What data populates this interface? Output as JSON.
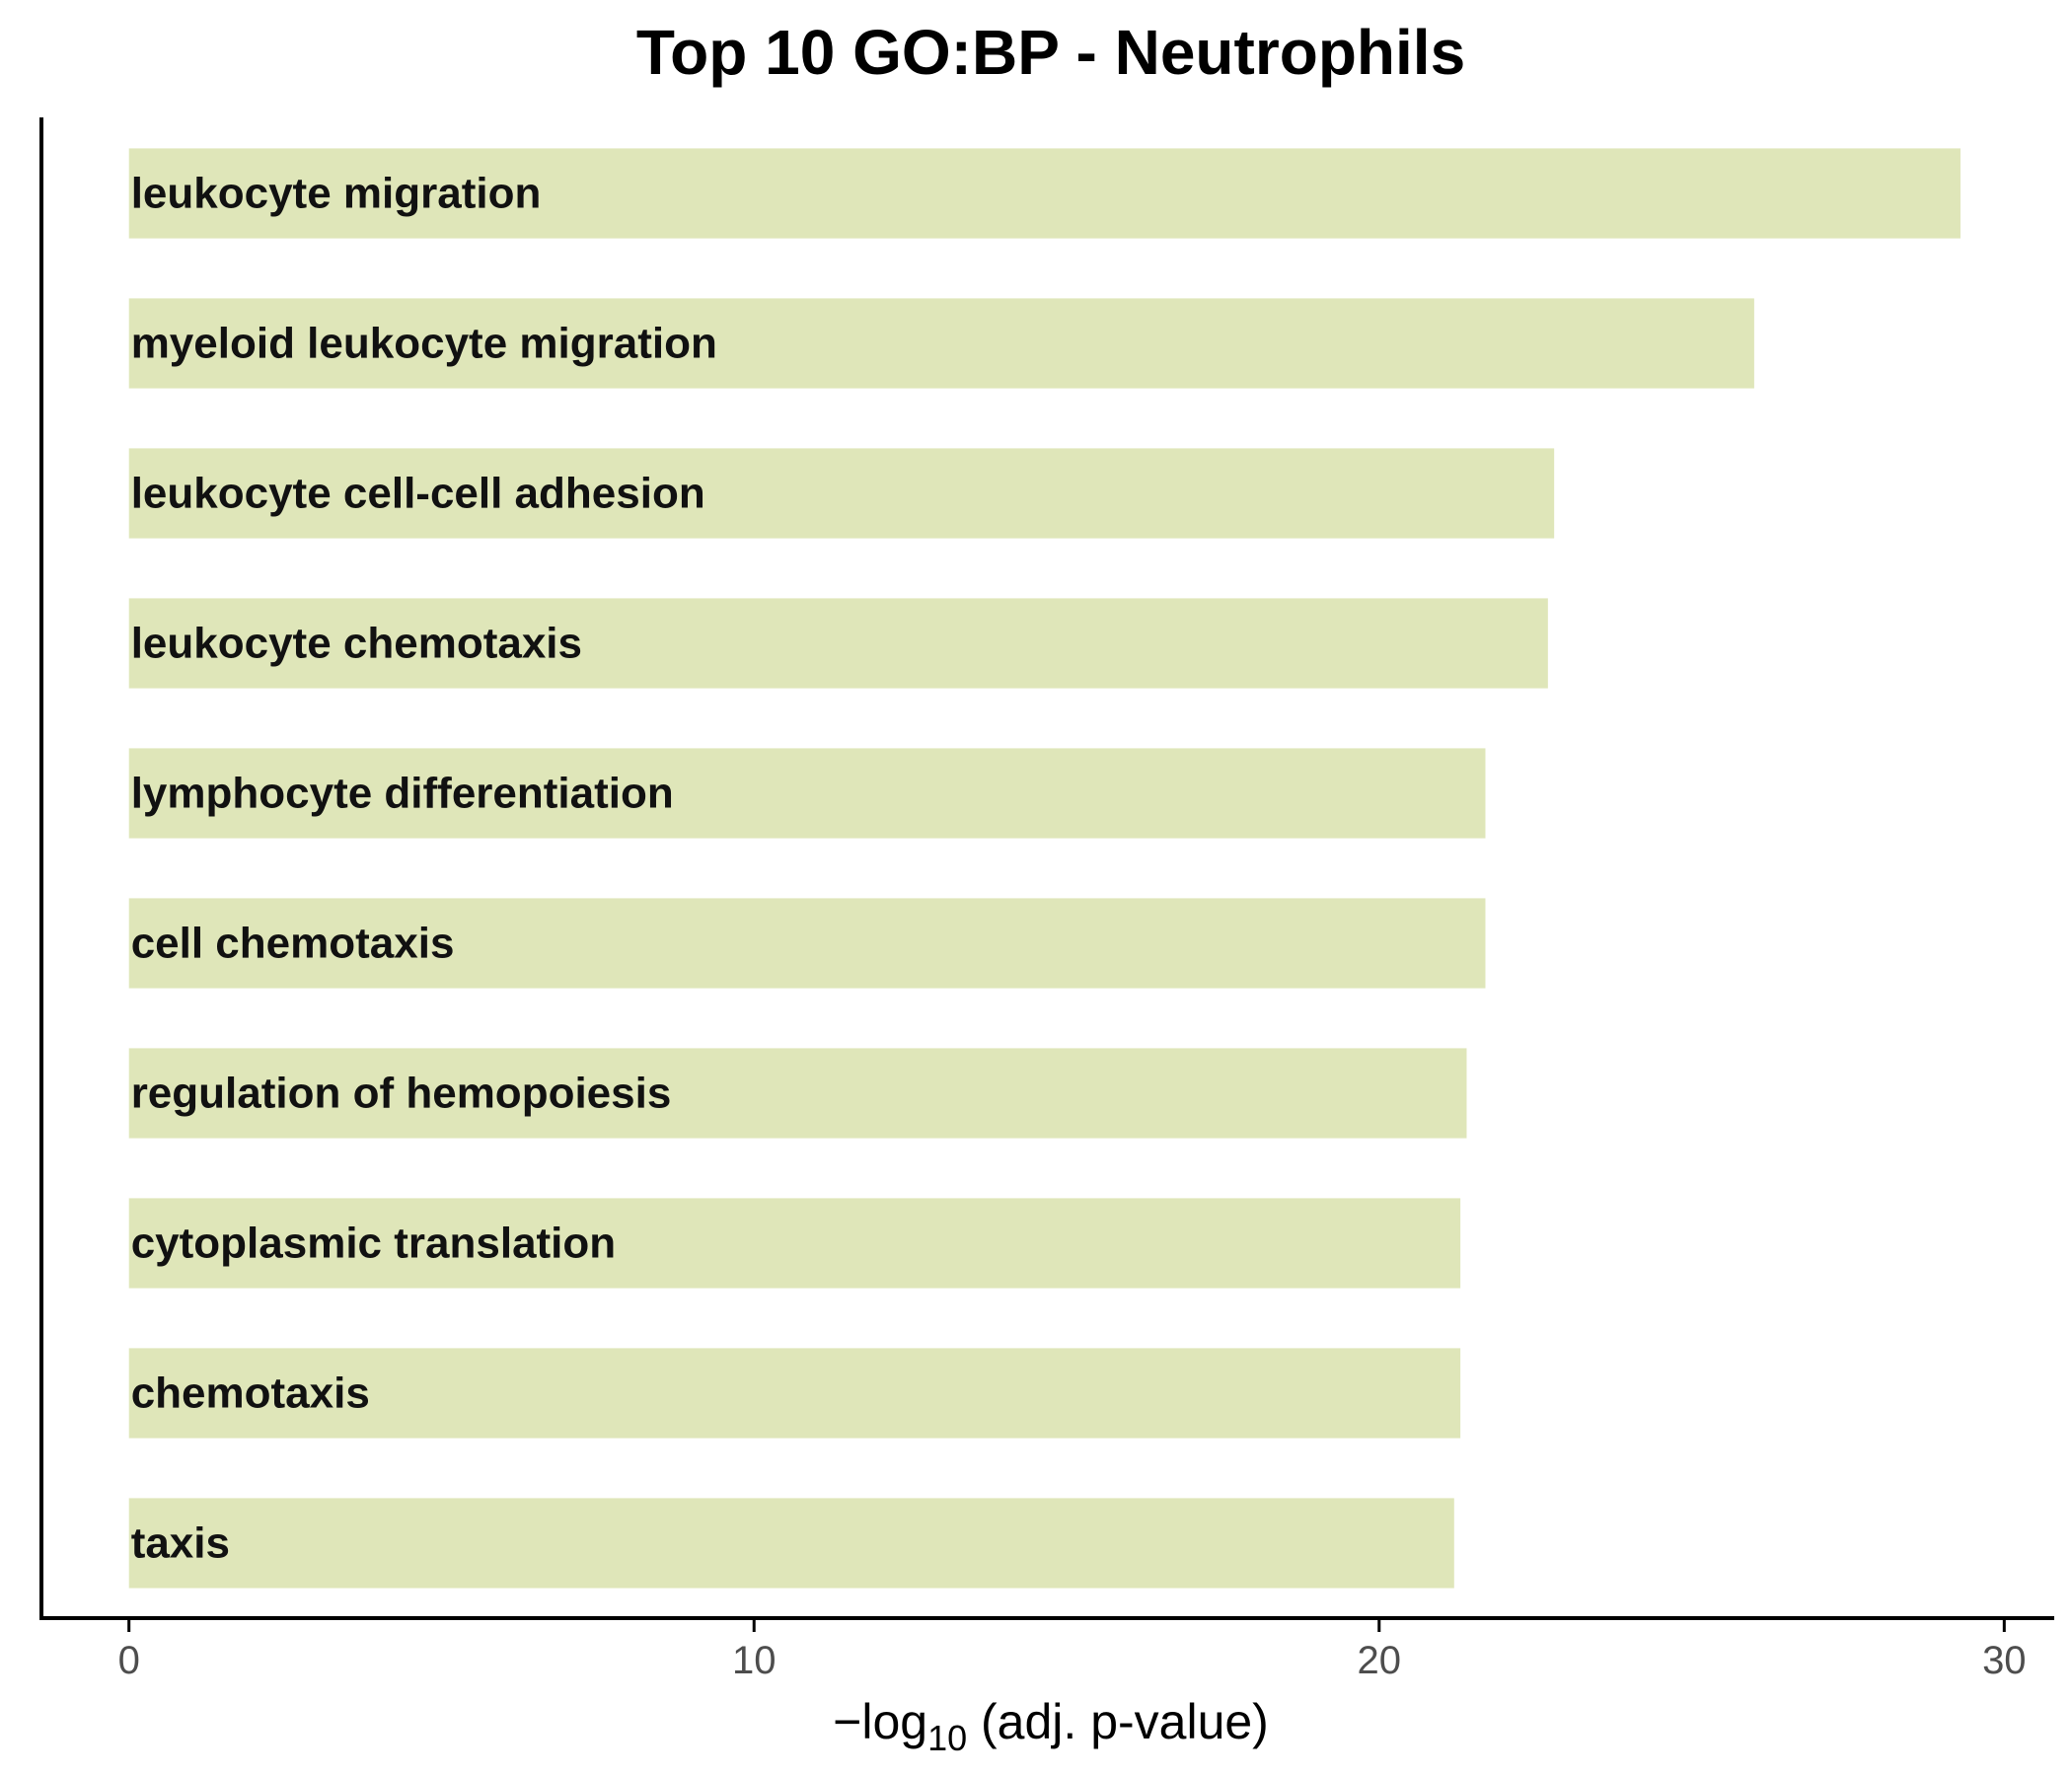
{
  "chart_data": {
    "type": "bar",
    "orientation": "horizontal",
    "title": "Top 10 GO:BP - Neutrophils",
    "xlabel": "−log",
    "xlabel_subscript": "10",
    "xlabel_suffix": " (adj. p-value)",
    "ylabel": "",
    "categories": [
      "leukocyte migration",
      "myeloid leukocyte migration",
      "leukocyte cell-cell adhesion",
      "leukocyte chemotaxis",
      "lymphocyte differentiation",
      "cell chemotaxis",
      "regulation of hemopoiesis",
      "cytoplasmic translation",
      "chemotaxis",
      "taxis"
    ],
    "values": [
      29.3,
      26.0,
      22.8,
      22.7,
      21.7,
      21.7,
      21.4,
      21.3,
      21.3,
      21.2
    ],
    "xlim": [
      -1.4,
      30.8
    ],
    "xticks": [
      0,
      10,
      20,
      30
    ],
    "xtick_labels": [
      "0",
      "10",
      "20",
      "30"
    ],
    "bar_color": "#dfe6b9",
    "axis_color": "#000000",
    "tick_label_color": "#4d4d4d",
    "grid": false,
    "legend": "none"
  }
}
